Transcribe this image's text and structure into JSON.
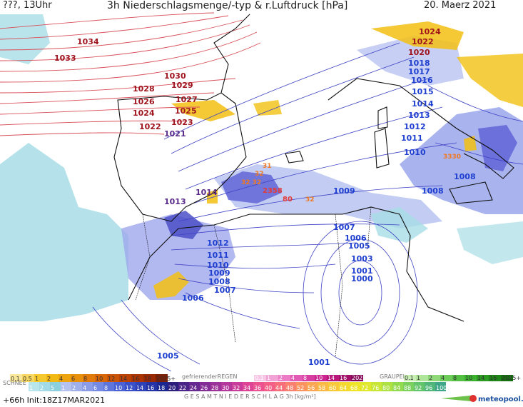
{
  "header": {
    "left": "???, 13Uhr",
    "title": "3h Niederschlagsmenge/-typ & r.Luftdruck [hPa]",
    "date": "20. Maerz 2021"
  },
  "map": {
    "isobar_labels": {
      "l1034": "1034",
      "l1033": "1033",
      "l1030": "1030",
      "l1029": "1029",
      "l1028": "1028",
      "l1027": "1027",
      "l1026": "1026",
      "l1025": "1025",
      "l1024": "1024",
      "l1023": "1023",
      "l1022": "1022",
      "l1021": "1021",
      "n1024": "1024",
      "n1022": "1022",
      "n1020": "1020",
      "n1018": "1018",
      "n1017": "1017",
      "n1016": "1016",
      "n1015": "1015",
      "n1014": "1014",
      "n1013": "1013",
      "n1012": "1012",
      "n1011": "1011",
      "n1010": "1010",
      "n1009": "1009",
      "n1008a": "1008",
      "n1008b": "1008",
      "w1014": "1014",
      "w1013": "1013",
      "s1012": "1012",
      "s1011": "1011",
      "s1010": "1010",
      "s1009": "1009",
      "s1008": "1008",
      "s1007": "1007",
      "s1006": "1006",
      "s1005": "1005",
      "c1007": "1007",
      "c1006": "1006",
      "c1005": "1005",
      "c1003": "1003",
      "c1001": "1001",
      "c1000": "1000",
      "b1001": "1001"
    },
    "precip_labels": {
      "p31": "31",
      "p32": "32",
      "p3232": "32 32",
      "p58": "2358",
      "p80": "80",
      "p82": "32",
      "p3330": "3330"
    }
  },
  "legend": {
    "snow_title": "SCHNEE",
    "rain_title": "gefrierenderREGEN",
    "graupel_title": "GRAUPEL",
    "total_title": "G E S A M T N I E D E R S C H L A G  3h  [kg/m²]",
    "snow_labels": [
      "0.1",
      "0.5",
      "1",
      "2",
      "4",
      "6",
      "8",
      "10",
      "12",
      "14",
      "16",
      "18",
      "2025+"
    ],
    "frz_labels": [
      "0.1",
      "1",
      "2",
      "4",
      "8",
      "10",
      "14",
      "16",
      "2025+"
    ],
    "graupel_labels": [
      "0.1",
      "1",
      "2",
      "4",
      "8",
      "10",
      "14",
      "16",
      "2025+"
    ],
    "total_labels": [
      "1",
      "2",
      "5",
      "1",
      "2",
      "4",
      "6",
      "8",
      "10",
      "12",
      "14",
      "16",
      "18",
      "20",
      "22",
      "24",
      "26",
      "28",
      "30",
      "32",
      "34",
      "36",
      "40",
      "44",
      "48",
      "52",
      "56",
      "58",
      "60",
      "64",
      "68",
      "72",
      "76",
      "80",
      "84",
      "88",
      "92",
      "96",
      "100"
    ],
    "footer_left": "+66h  Init:18Z17MAR2021",
    "brand": "meteopool.org"
  }
}
